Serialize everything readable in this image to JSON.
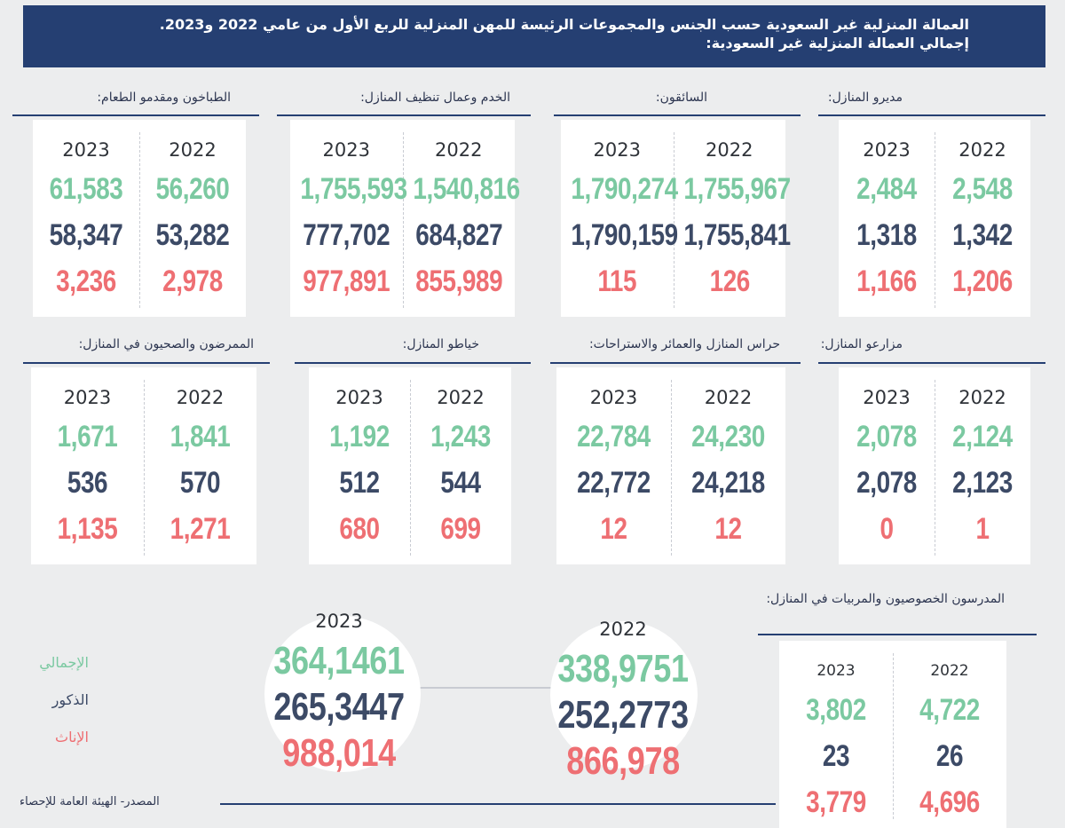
{
  "title": {
    "line1": "العمالة المنزلية غير السعودية حسب الجنس والمجموعات الرئيسة للمهن المنزلية للربع الأول من عامي 2022 و2023.",
    "line2": "إجمالي العمالة المنزلية غير السعودية:"
  },
  "legend": {
    "total": "الإجمالي",
    "males": "الذكور",
    "females": "الإناث"
  },
  "source": "المصدر- الهيئة العامة للإحصاء",
  "chart_data": {
    "type": "table",
    "title": "العمالة المنزلية غير السعودية حسب الجنس والمجموعات الرئيسة للمهن المنزلية للربع الأول من عامي 2022 و2023.",
    "years": [
      "2022",
      "2023"
    ],
    "series_names": [
      "الإجمالي",
      "الذكور",
      "الإناث"
    ],
    "overall": {
      "2022": {
        "year": "2022",
        "total": "338,9751",
        "males": "252,2773",
        "females": "866,978"
      },
      "2023": {
        "year": "2023",
        "total": "364,1461",
        "males": "265,3447",
        "females": "988,014"
      }
    },
    "categories": [
      {
        "name": "مديرو المنازل:",
        "y2022": {
          "year": "2022",
          "total": "2,548",
          "males": "1,342",
          "females": "1,206"
        },
        "y2023": {
          "year": "2023",
          "total": "2,484",
          "males": "1,318",
          "females": "1,166"
        }
      },
      {
        "name": "السائقون:",
        "y2022": {
          "year": "2022",
          "total": "1,755,967",
          "males": "1,755,841",
          "females": "126"
        },
        "y2023": {
          "year": "2023",
          "total": "1,790,274",
          "males": "1,790,159",
          "females": "115"
        }
      },
      {
        "name": "الخدم وعمال تنظيف المنازل:",
        "y2022": {
          "year": "2022",
          "total": "1,540,816",
          "males": "684,827",
          "females": "855,989"
        },
        "y2023": {
          "year": "2023",
          "total": "1,755,593",
          "males": "777,702",
          "females": "977,891"
        }
      },
      {
        "name": "الطباخون ومقدمو الطعام:",
        "y2022": {
          "year": "2022",
          "total": "56,260",
          "males": "53,282",
          "females": "2,978"
        },
        "y2023": {
          "year": "2023",
          "total": "61,583",
          "males": "58,347",
          "females": "3,236"
        }
      },
      {
        "name": "مزارعو المنازل:",
        "y2022": {
          "year": "2022",
          "total": "2,124",
          "males": "2,123",
          "females": "1"
        },
        "y2023": {
          "year": "2023",
          "total": "2,078",
          "males": "2,078",
          "females": "0"
        }
      },
      {
        "name": "حراس المنازل والعمائر والاستراحات:",
        "y2022": {
          "year": "2022",
          "total": "24,230",
          "males": "24,218",
          "females": "12"
        },
        "y2023": {
          "year": "2023",
          "total": "22,784",
          "males": "22,772",
          "females": "12"
        }
      },
      {
        "name": "خياطو المنازل:",
        "y2022": {
          "year": "2022",
          "total": "1,243",
          "males": "544",
          "females": "699"
        },
        "y2023": {
          "year": "2023",
          "total": "1,192",
          "males": "512",
          "females": "680"
        }
      },
      {
        "name": "الممرضون والصحيون في المنازل:",
        "y2022": {
          "year": "2022",
          "total": "1,841",
          "males": "570",
          "females": "1,271"
        },
        "y2023": {
          "year": "2023",
          "total": "1,671",
          "males": "536",
          "females": "1,135"
        }
      },
      {
        "name": "المدرسون الخصوصيون والمربيات في المنازل:",
        "y2022": {
          "year": "2022",
          "total": "4,722",
          "males": "26",
          "females": "4,696"
        },
        "y2023": {
          "year": "2023",
          "total": "3,802",
          "males": "23",
          "females": "3,779"
        }
      }
    ]
  }
}
